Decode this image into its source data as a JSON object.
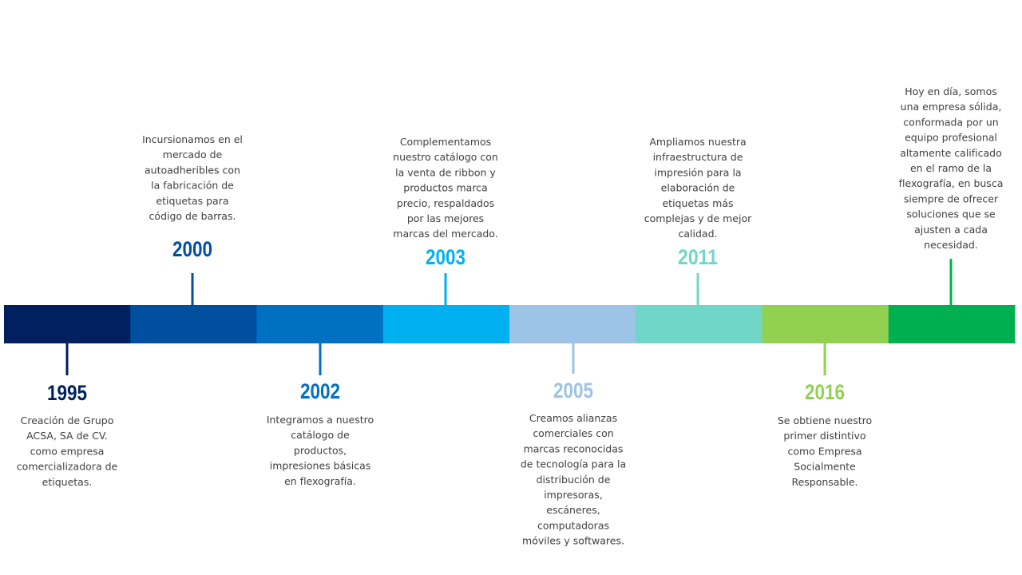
{
  "timeline": {
    "segments": [
      "#00205f",
      "#004f9f",
      "#0070c0",
      "#00b0f0",
      "#9dc3e6",
      "#70d6c8",
      "#92d050",
      "#00b050"
    ],
    "events": [
      {
        "year": "1995",
        "lines": [
          "Creación de Grupo",
          "ACSA, SA de CV.",
          "como empresa",
          "comercializadora de",
          "etiquetas."
        ]
      },
      {
        "year": "2000",
        "lines": [
          "Incursionamos en el",
          "mercado de",
          "autoadheribles con",
          "la fabricación de",
          "etiquetas para",
          "código de barras."
        ]
      },
      {
        "year": "2002",
        "lines": [
          "Integramos a nuestro",
          "catálogo de",
          "productos,",
          "impresiones básicas",
          "en flexografía."
        ]
      },
      {
        "year": "2003",
        "lines": [
          "Complementamos",
          "nuestro catálogo con",
          "la venta de ribbon y",
          "productos marca",
          "precio, respaldados",
          "por las mejores",
          "marcas del mercado."
        ]
      },
      {
        "year": "2005",
        "lines": [
          "Creamos alianzas",
          "comerciales con",
          "marcas reconocidas",
          "de tecnología para la",
          "distribución de",
          "impresoras,",
          "escáneres,",
          "computadoras",
          "móviles y softwares."
        ]
      },
      {
        "year": "2011",
        "lines": [
          "Ampliamos nuestra",
          "infraestructura de",
          "impresión para la",
          "elaboración de",
          "etiquetas más",
          "complejas y de mejor",
          "calidad."
        ]
      },
      {
        "year": "2016",
        "lines": [
          "Se obtiene nuestro",
          "primer distintivo",
          "como Empresa",
          "Socialmente",
          "Responsable."
        ]
      },
      {
        "lines": [
          "Hoy en día, somos",
          "una empresa sólida,",
          "conformada por un",
          "equipo profesional",
          "altamente calificado",
          "en el ramo de la",
          "flexografía, en busca",
          "siempre de ofrecer",
          "soluciones que se",
          "ajusten a cada",
          "necesidad."
        ]
      }
    ]
  }
}
